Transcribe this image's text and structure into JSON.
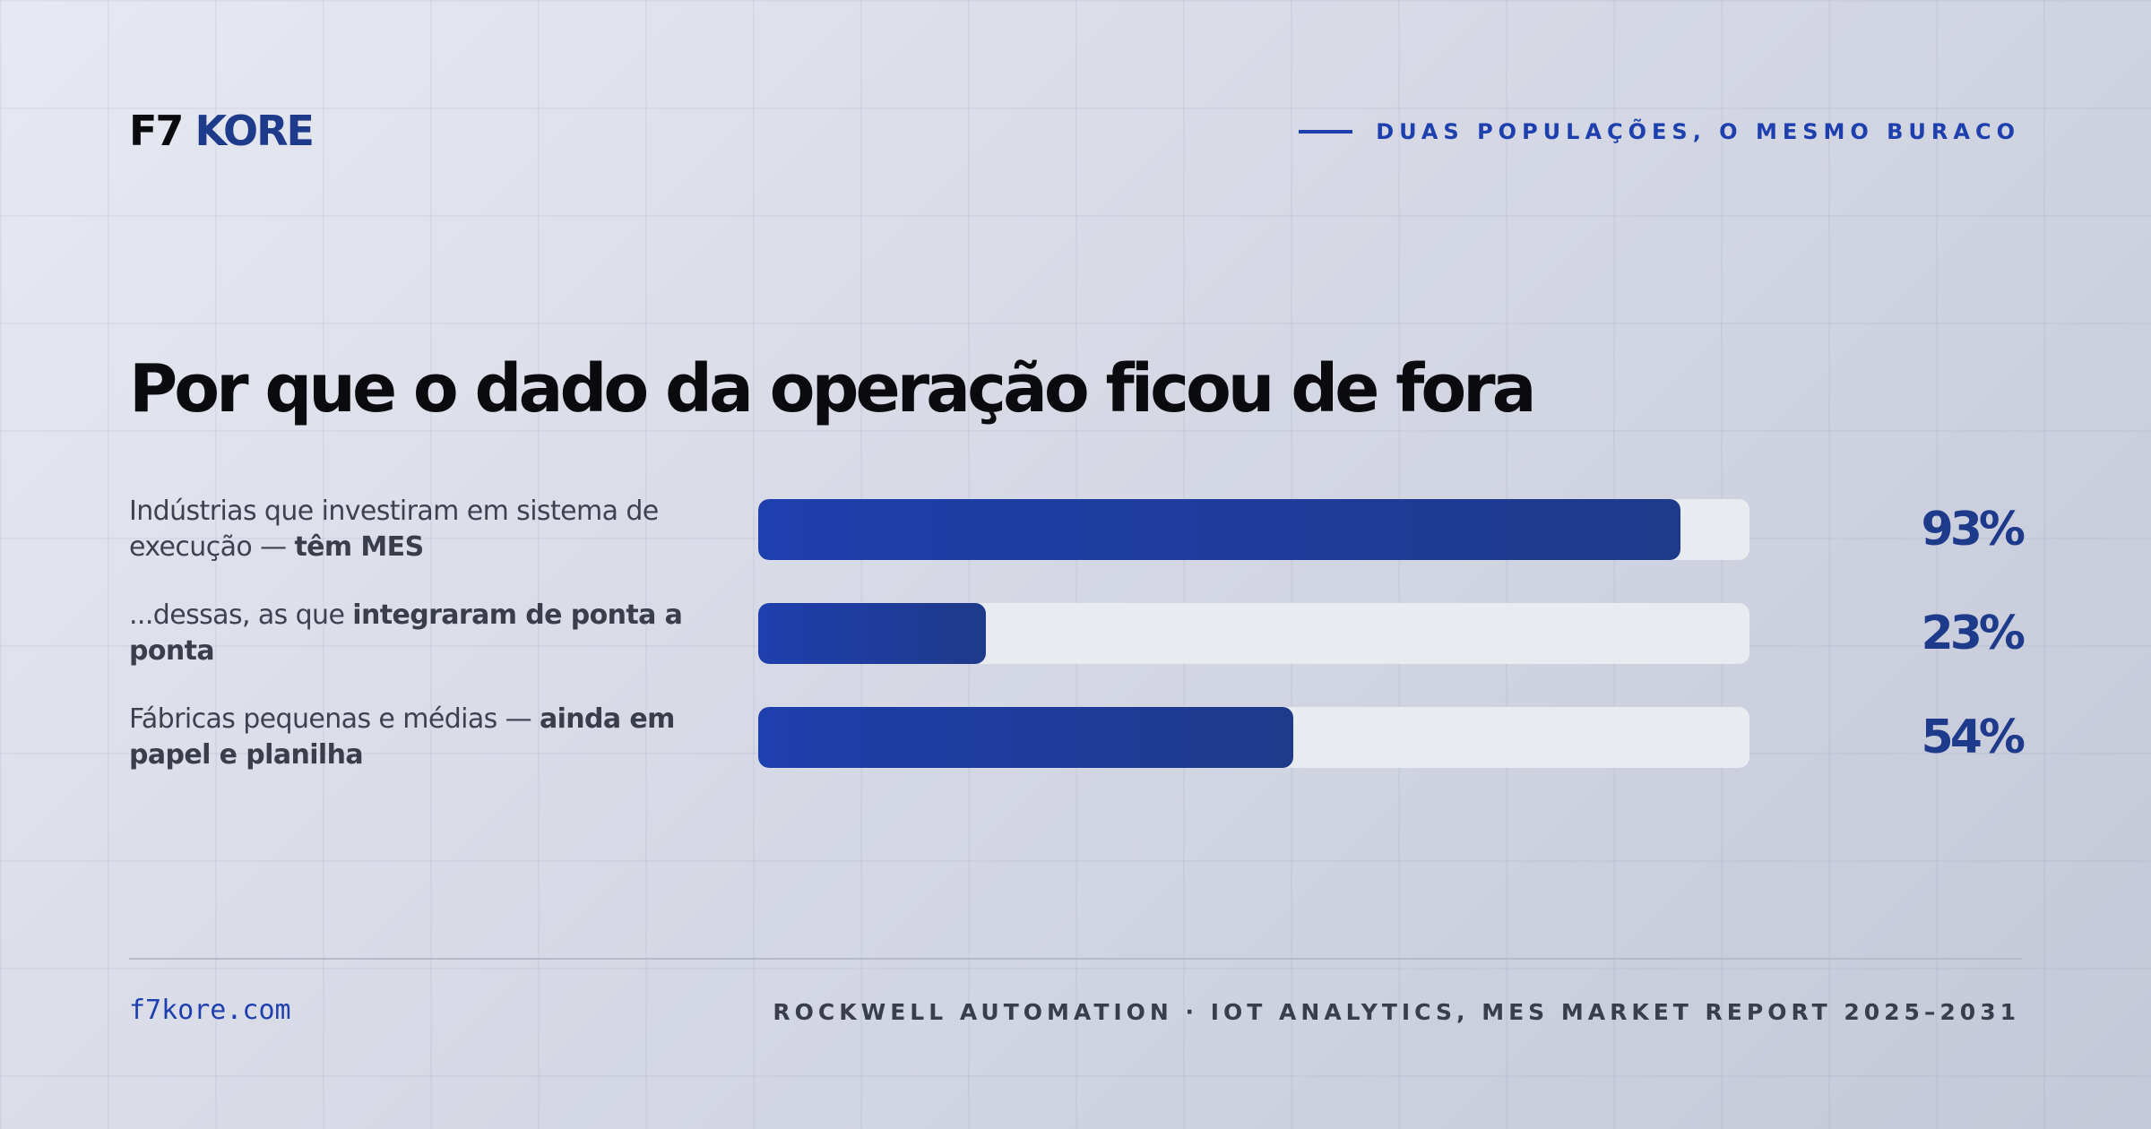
{
  "brand": {
    "prefix": "F7",
    "name": "KORE"
  },
  "kicker": "DUAS POPULAÇÕES, O MESMO BURACO",
  "colors": {
    "accent": "#1e3fae",
    "accent_dark": "#1e3a8a",
    "track": "#eaebf1",
    "text": "#0b0b0f",
    "muted": "#3e4150"
  },
  "chart_data": {
    "type": "bar",
    "orientation": "horizontal",
    "title": "Por que o dado da operação ficou de fora",
    "unit": "%",
    "xlim": [
      0,
      100
    ],
    "grid": false,
    "rows": [
      {
        "label_plain": "Indústrias que investiram em sistema de execução — ",
        "label_bold": "têm MES",
        "value": 93,
        "value_label": "93%"
      },
      {
        "label_plain": "...dessas, as que ",
        "label_bold": "integraram de ponta a ponta",
        "value": 23,
        "value_label": "23%"
      },
      {
        "label_plain": "Fábricas pequenas e médias — ",
        "label_bold": "ainda em papel e planilha",
        "value": 54,
        "value_label": "54%"
      }
    ]
  },
  "footer": {
    "url": "f7kore.com",
    "source": "ROCKWELL AUTOMATION · IOT ANALYTICS, MES MARKET REPORT 2025–2031"
  }
}
